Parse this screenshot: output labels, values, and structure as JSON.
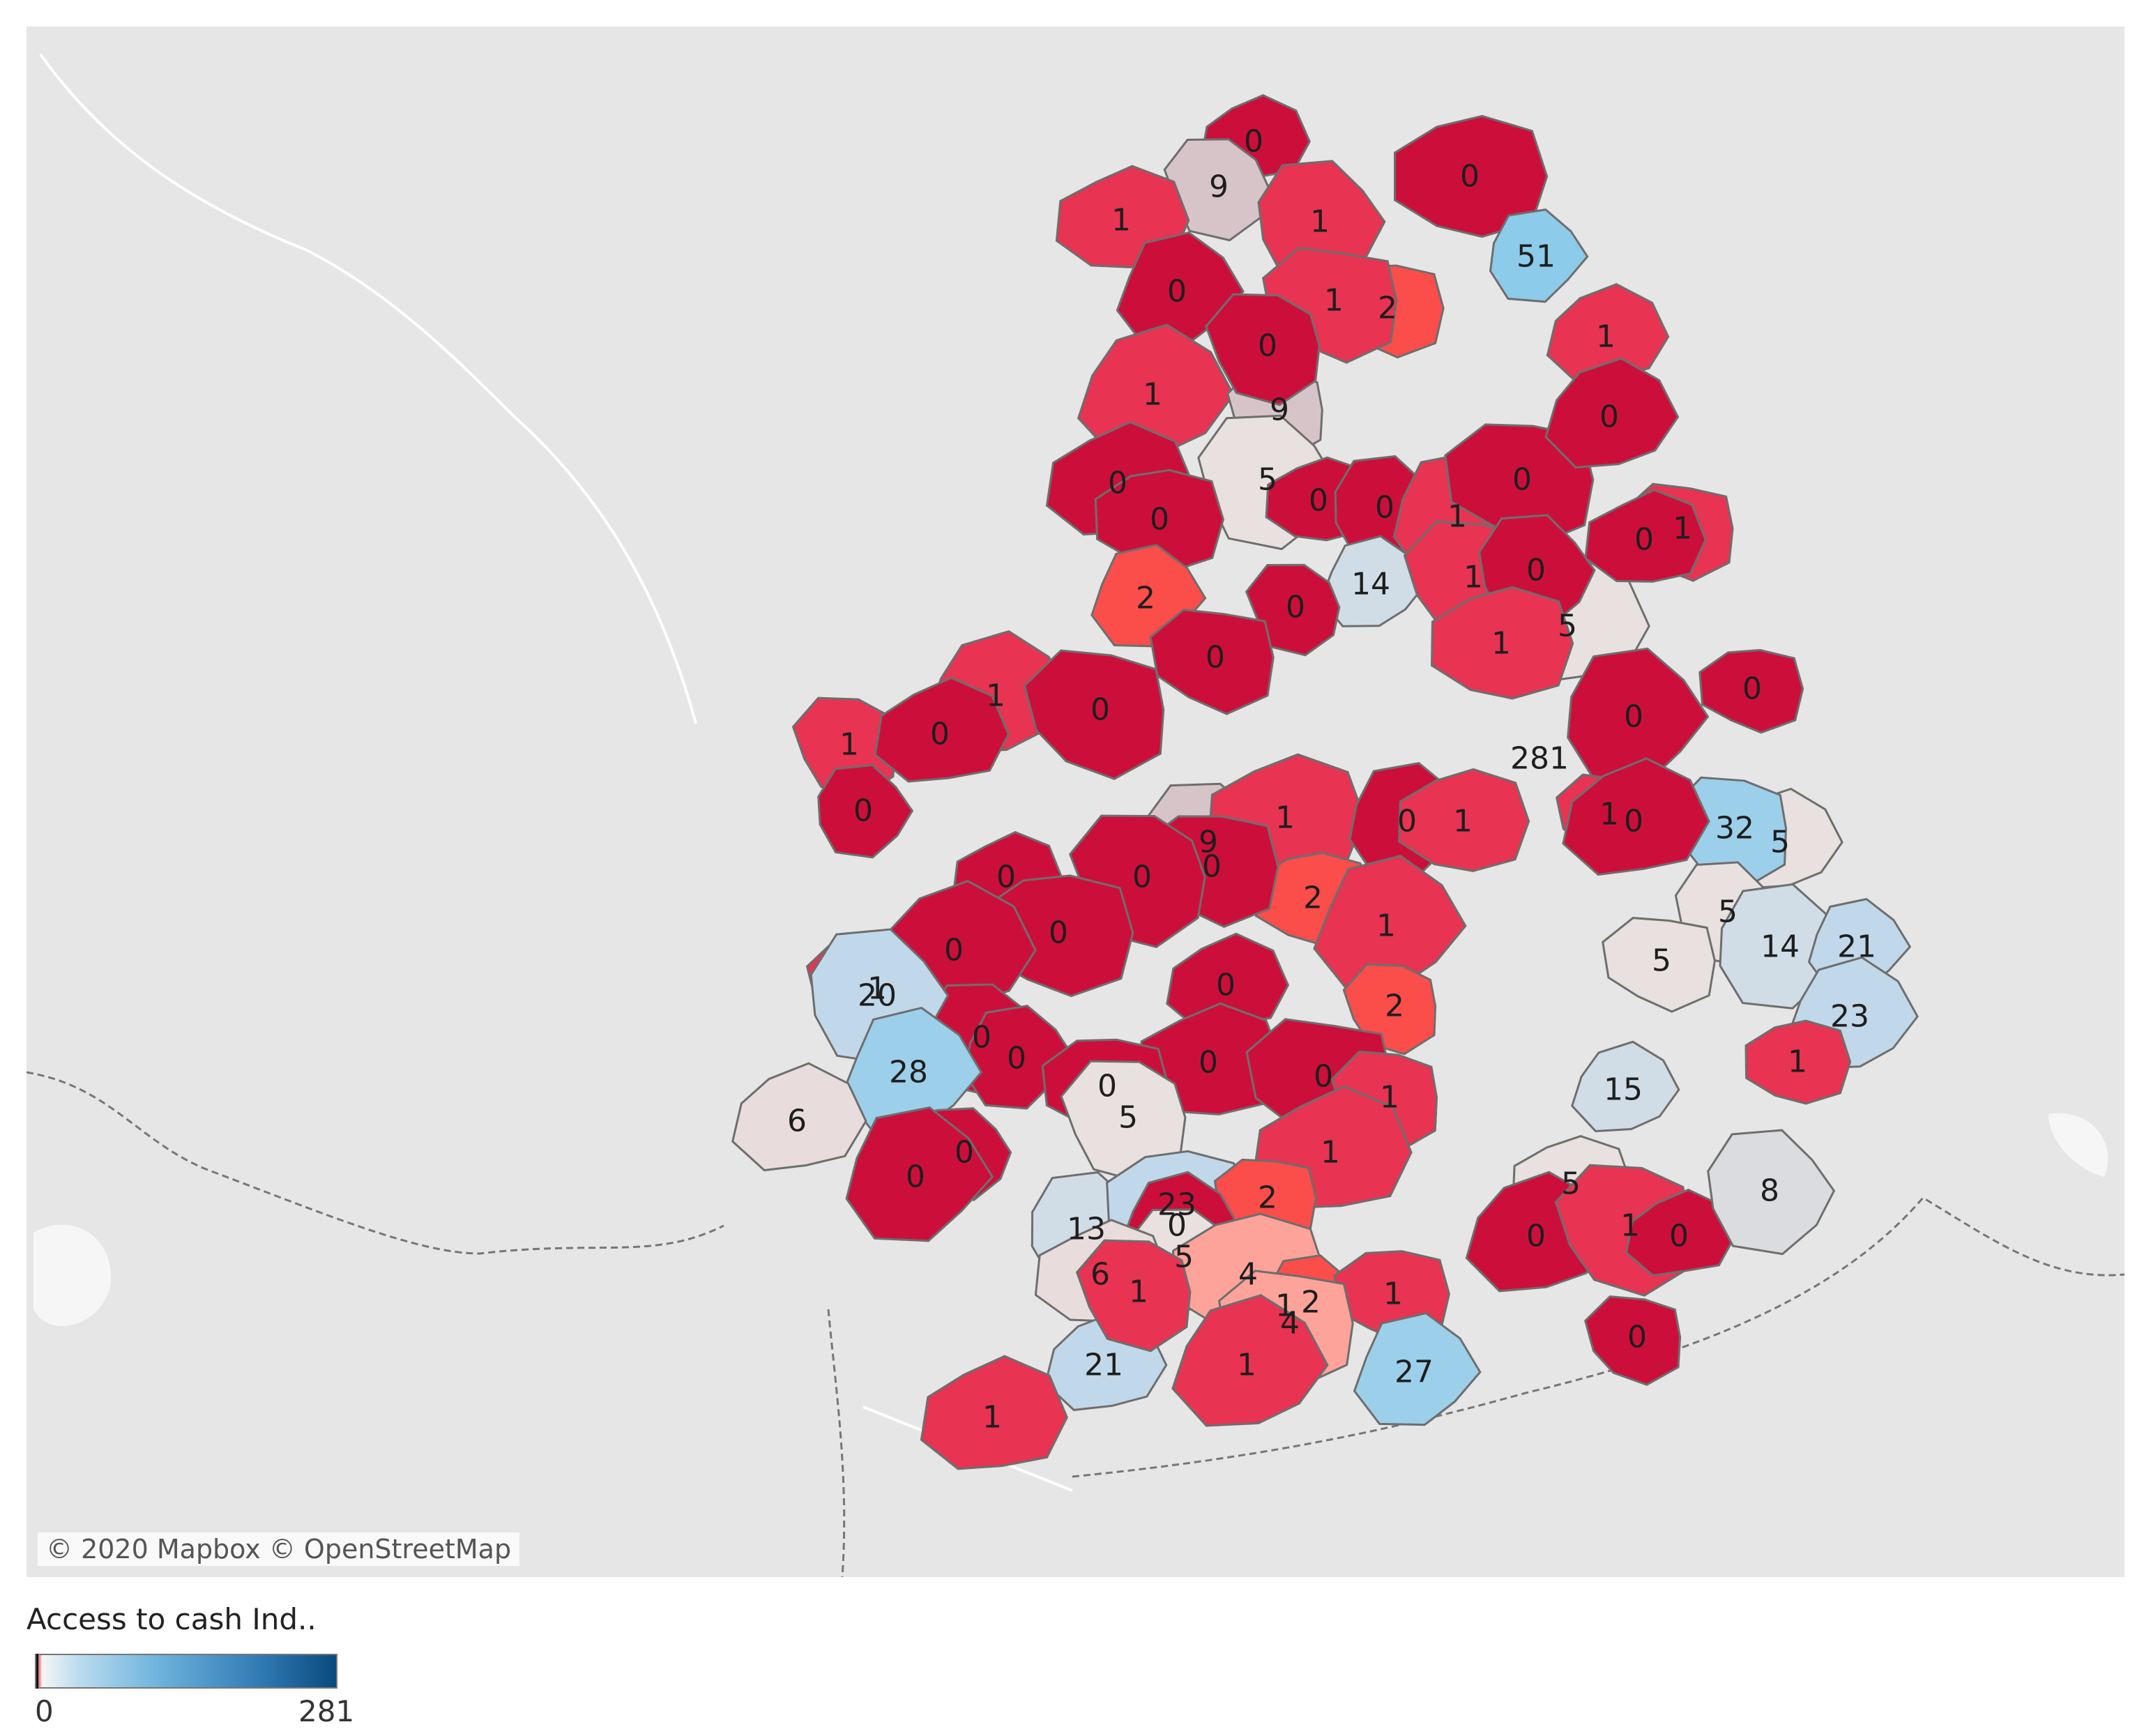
{
  "map": {
    "attribution": "© 2020 Mapbox © OpenStreetMap",
    "value_min": 0,
    "value_max": 281,
    "colors": {
      "low": "#d0021b",
      "mid": "#f2f2f2",
      "high": "#0a4a7d",
      "background": "#e6e6e6",
      "border": "#6e6e6e"
    },
    "region_values": [
      0,
      9,
      1,
      1,
      0,
      51,
      2,
      0,
      1,
      1,
      9,
      1,
      0,
      0,
      5,
      0,
      0,
      0,
      1,
      0,
      14,
      1,
      0,
      1,
      5,
      0,
      0,
      0,
      1,
      0,
      0,
      2,
      0,
      1,
      0,
      281,
      1,
      0,
      9,
      1,
      0,
      2,
      0,
      0,
      1,
      1,
      5,
      32,
      0,
      0,
      0,
      5,
      1,
      14,
      0,
      21,
      5,
      23,
      1,
      0,
      2,
      0,
      0,
      0,
      20,
      1,
      0,
      0,
      28,
      0,
      15,
      1,
      6,
      5,
      1,
      0,
      5,
      13,
      23,
      0,
      2,
      0,
      1,
      0,
      1,
      0,
      5,
      6,
      8,
      4,
      2,
      1,
      27,
      4,
      1,
      0,
      21,
      1,
      1
    ]
  },
  "legend": {
    "title": "Access to cash Ind..",
    "min_label": "0",
    "max_label": "281"
  }
}
